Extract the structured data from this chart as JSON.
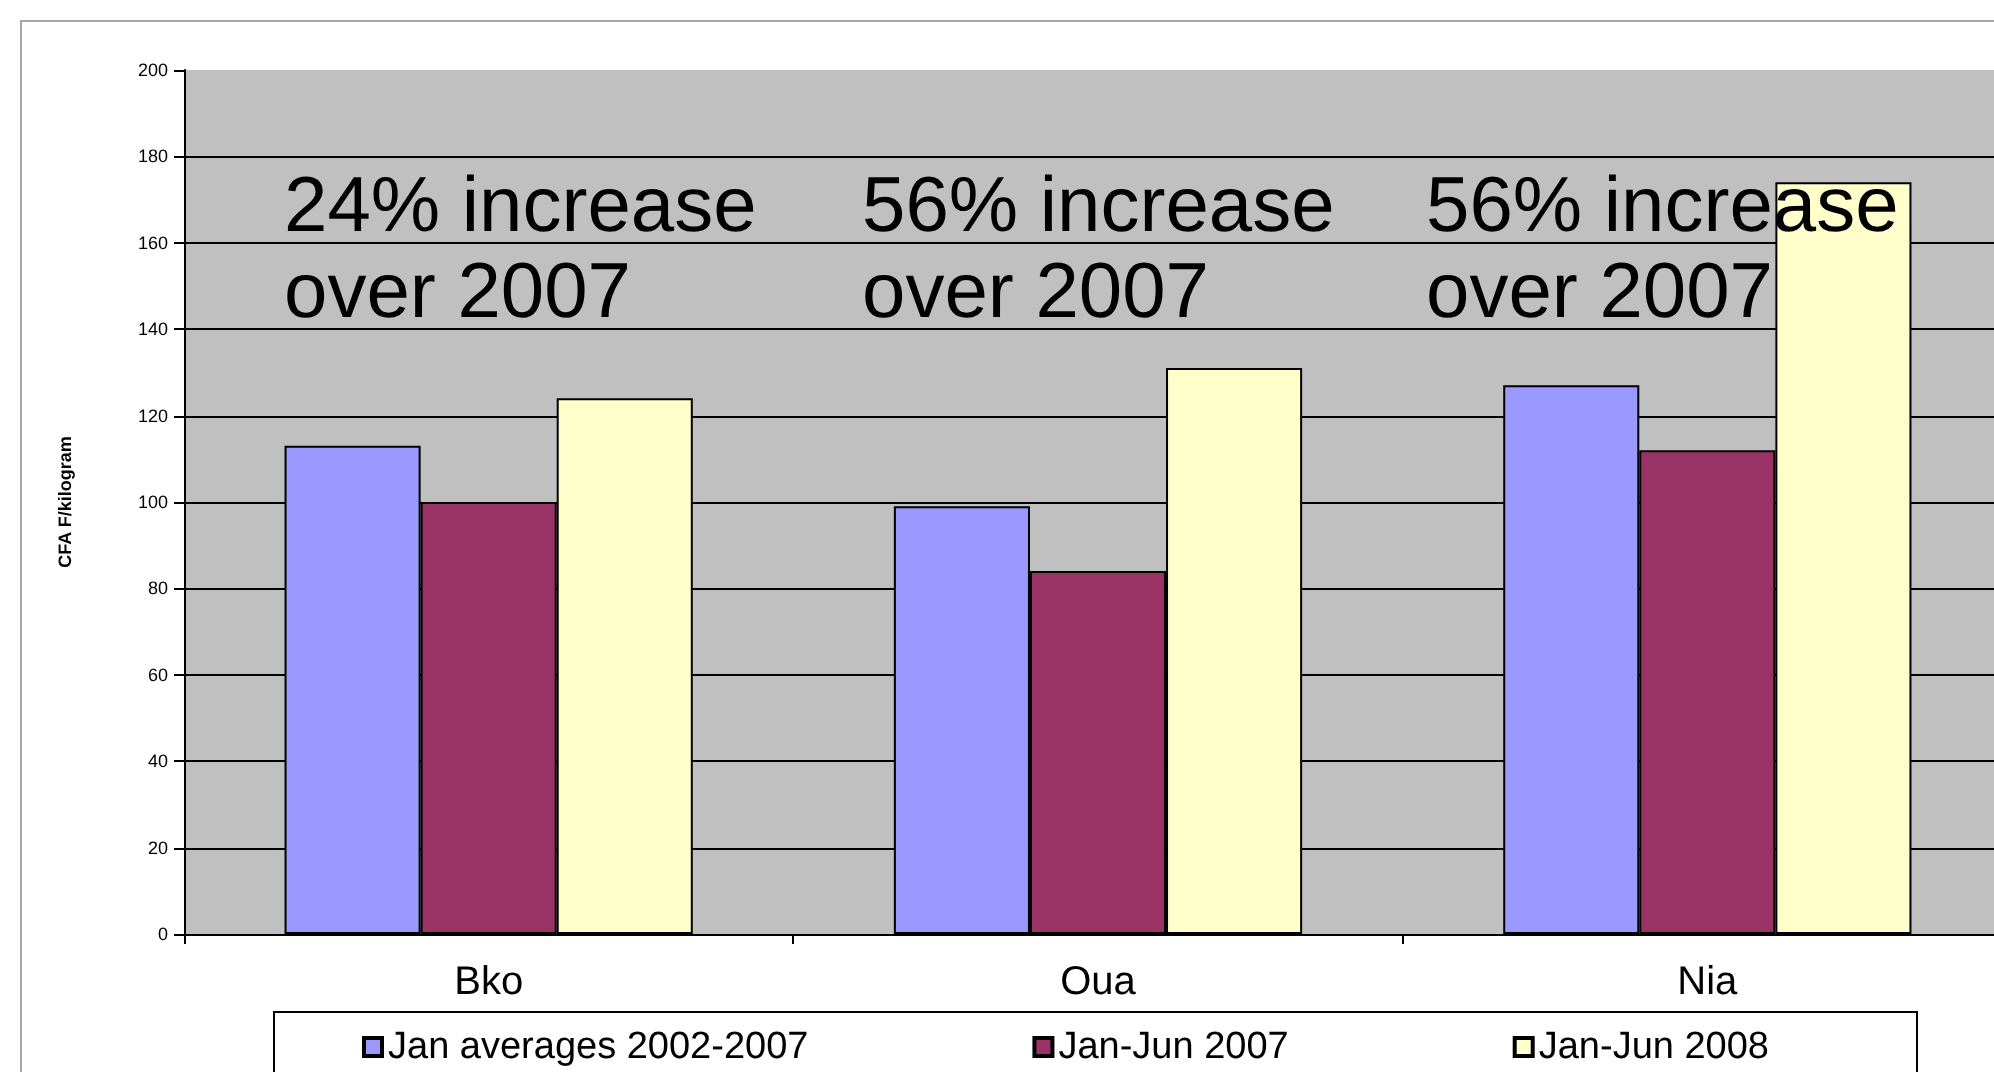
{
  "chart_data": {
    "type": "bar",
    "ylabel": "CFA F/kilogram",
    "categories": [
      "Bko",
      "Oua",
      "Nia"
    ],
    "series": [
      {
        "name": "Jan averages 2002-2007",
        "color": "#9999ff",
        "values": [
          113,
          99,
          127
        ]
      },
      {
        "name": "Jan-Jun 2007",
        "color": "#993366",
        "values": [
          100,
          84,
          112
        ]
      },
      {
        "name": "Jan-Jun 2008",
        "color": "#ffffcc",
        "values": [
          124,
          131,
          174
        ]
      }
    ],
    "ylim": [
      0,
      200
    ],
    "yticks": [
      0,
      20,
      40,
      60,
      80,
      100,
      120,
      140,
      160,
      180,
      200
    ],
    "grid": "y",
    "legend": "bottom",
    "annotations": [
      "24% increase over 2007",
      "56% increase over 2007",
      "56% increase over 2007"
    ]
  }
}
